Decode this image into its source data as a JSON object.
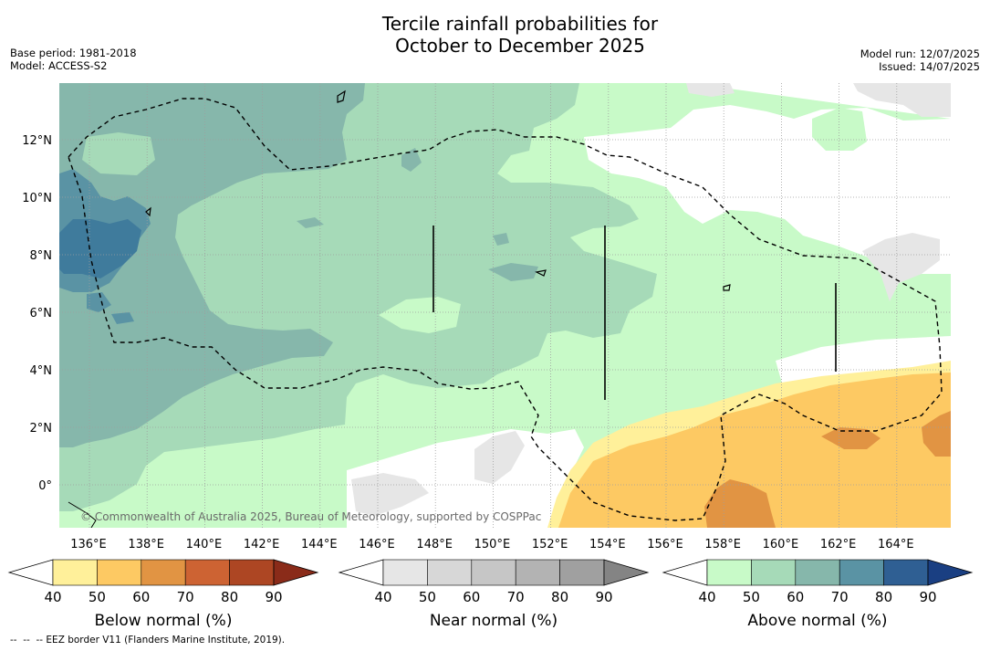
{
  "title": {
    "line1": "Tercile rainfall probabilities for",
    "line2": "October to December 2025"
  },
  "meta": {
    "base_period": "Base period: 1981-2018",
    "model": "Model: ACCESS-S2",
    "model_run": "Model run: 12/07/2025",
    "issued": "Issued: 14/07/2025"
  },
  "map": {
    "lon_labels": [
      "136°E",
      "138°E",
      "140°E",
      "142°E",
      "144°E",
      "146°E",
      "148°E",
      "150°E",
      "152°E",
      "154°E",
      "156°E",
      "158°E",
      "160°E",
      "162°E",
      "164°E"
    ],
    "lat_labels": [
      "12°N",
      "10°N",
      "8°N",
      "6°N",
      "4°N",
      "2°N",
      "0°"
    ],
    "copyright": "© Commonwealth of Australia 2025, Bureau of Meteorology, supported by COSPPac"
  },
  "colorbars": [
    {
      "title": "Below normal (%)",
      "ticks": [
        "40",
        "50",
        "60",
        "70",
        "80",
        "90"
      ],
      "colors": [
        "#fff09a",
        "#fdc963",
        "#e19443",
        "#cd6333",
        "#ad4623",
        "#8a2b19"
      ]
    },
    {
      "title": "Near normal (%)",
      "ticks": [
        "40",
        "50",
        "60",
        "70",
        "80",
        "90"
      ],
      "colors": [
        "#e6e6e6",
        "#d7d7d7",
        "#c6c6c6",
        "#b3b3b3",
        "#a0a0a0",
        "#848484"
      ]
    },
    {
      "title": "Above normal (%)",
      "ticks": [
        "40",
        "50",
        "60",
        "70",
        "80",
        "90"
      ],
      "colors": [
        "#c8fac8",
        "#a6dab8",
        "#86b7ab",
        "#5a93a4",
        "#2f5f93",
        "#1a3f82"
      ]
    }
  ],
  "footer": "--  --  -- EEZ border V11 (Flanders Marine Institute, 2019)."
}
